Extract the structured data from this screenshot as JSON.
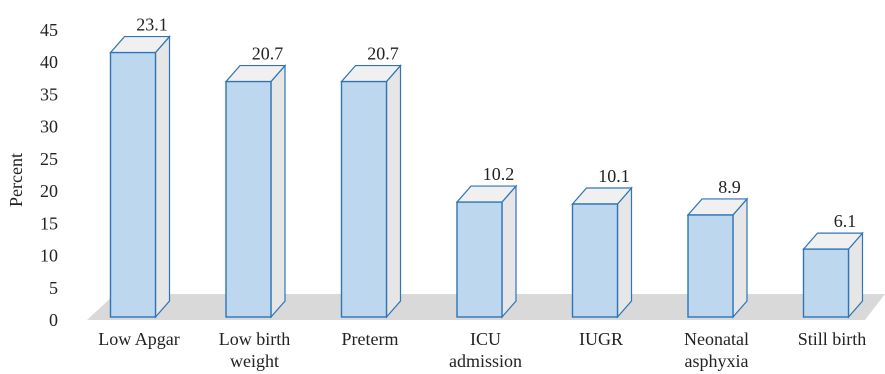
{
  "chart_data": {
    "type": "bar",
    "title": "",
    "xlabel": "",
    "ylabel": "Percent",
    "ylim": [
      0,
      45
    ],
    "yticks": [
      0,
      5,
      10,
      15,
      20,
      25,
      30,
      35,
      40,
      45
    ],
    "grid": false,
    "legend": "none",
    "categories": [
      "Low Apgar",
      "Low birth weight",
      "Preterm",
      "ICU admission",
      "IUGR",
      "Neonatal asphyxia",
      "Still birth"
    ],
    "category_lines": [
      [
        "Low Apgar"
      ],
      [
        "Low birth",
        "weight"
      ],
      [
        "Preterm"
      ],
      [
        "ICU",
        "admission"
      ],
      [
        "IUGR"
      ],
      [
        "Neonatal",
        "asphyxia"
      ],
      [
        "Still birth"
      ]
    ],
    "values": [
      41.5,
      37.0,
      37.0,
      18.3,
      18.0,
      16.3,
      11.0
    ],
    "data_labels": [
      "23.1",
      "20.7",
      "20.7",
      "10.2",
      "10.1",
      "8.9",
      "6.1"
    ],
    "style": "3d-column",
    "colors": {
      "bar_front": "#bdd7ee",
      "bar_side": "#e6e6e6",
      "bar_top": "#f0f0f0",
      "bar_edge": "#2e75b6",
      "floor": "#d9d9d9"
    }
  }
}
